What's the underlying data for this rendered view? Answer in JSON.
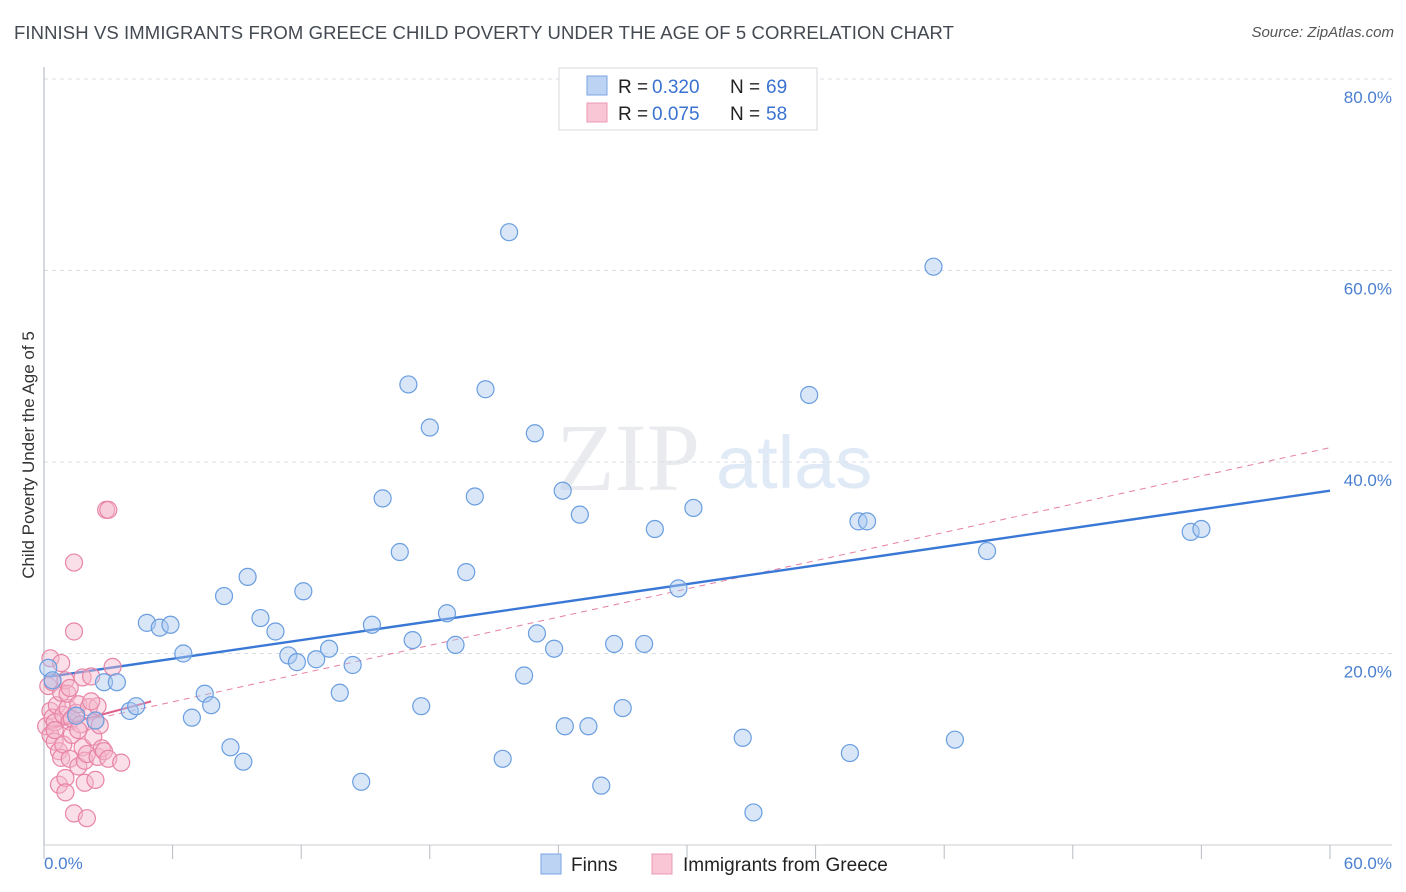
{
  "header": {
    "title": "FINNISH VS IMMIGRANTS FROM GREECE CHILD POVERTY UNDER THE AGE OF 5 CORRELATION CHART",
    "source": "Source: ZipAtlas.com"
  },
  "watermark": {
    "zip": "ZIP",
    "atlas": "atlas"
  },
  "colors": {
    "finns_fill": "#a9c8f0",
    "finns_stroke": "#6a9ee0",
    "finns_line": "#3a78d6",
    "greece_fill": "#f5b8cc",
    "greece_stroke": "#e884a6",
    "greece_line": "#e0608c",
    "grid": "#d9dde3",
    "tick_label": "#4a7fd0"
  },
  "legend": {
    "r_label": "R =",
    "n_label": "N =",
    "finns_r": "0.320",
    "finns_n": "69",
    "greece_r": "0.075",
    "greece_n": "58"
  },
  "bottom_legend": {
    "finns": "Finns",
    "greece": "Immigrants from Greece"
  },
  "chart_data": {
    "type": "scatter",
    "title": "FINNISH VS IMMIGRANTS FROM GREECE CHILD POVERTY UNDER THE AGE OF 5 CORRELATION CHART",
    "xlabel": "",
    "ylabel": "Child Poverty Under the Age of 5",
    "xlim": [
      0,
      60
    ],
    "ylim": [
      0,
      80
    ],
    "x_tick_labels": {
      "min": "0.0%",
      "max": "60.0%"
    },
    "y_tick_labels": [
      "20.0%",
      "40.0%",
      "60.0%",
      "80.0%"
    ],
    "y_tick_values": [
      20,
      40,
      60,
      80
    ],
    "x_minor_ticks": [
      0,
      6,
      12,
      18,
      24,
      30,
      36,
      42,
      48,
      54,
      60
    ],
    "series": [
      {
        "name": "Finns",
        "r": 0.32,
        "n": 69,
        "trend": {
          "x": [
            0,
            60
          ],
          "y": [
            17.5,
            37.0
          ],
          "style": "solid"
        },
        "points": [
          [
            0.2,
            18.5
          ],
          [
            0.4,
            17.2
          ],
          [
            1.5,
            13.5
          ],
          [
            2.4,
            13.0
          ],
          [
            2.8,
            17.0
          ],
          [
            3.4,
            17.0
          ],
          [
            4.0,
            14.0
          ],
          [
            4.3,
            14.5
          ],
          [
            4.8,
            23.2
          ],
          [
            5.4,
            22.7
          ],
          [
            5.9,
            23.0
          ],
          [
            6.5,
            20.0
          ],
          [
            6.9,
            13.3
          ],
          [
            7.5,
            15.8
          ],
          [
            7.8,
            14.6
          ],
          [
            8.4,
            26.0
          ],
          [
            8.7,
            10.2
          ],
          [
            9.3,
            8.7
          ],
          [
            9.5,
            28.0
          ],
          [
            10.1,
            23.7
          ],
          [
            10.8,
            22.3
          ],
          [
            11.4,
            19.8
          ],
          [
            11.8,
            19.1
          ],
          [
            12.1,
            26.5
          ],
          [
            12.7,
            19.4
          ],
          [
            13.3,
            20.5
          ],
          [
            13.8,
            15.9
          ],
          [
            14.4,
            18.8
          ],
          [
            14.8,
            6.6
          ],
          [
            15.3,
            23.0
          ],
          [
            15.8,
            36.2
          ],
          [
            16.6,
            30.6
          ],
          [
            17.0,
            48.1
          ],
          [
            17.2,
            21.4
          ],
          [
            17.6,
            14.5
          ],
          [
            18.0,
            43.6
          ],
          [
            18.8,
            24.2
          ],
          [
            19.2,
            20.9
          ],
          [
            19.7,
            28.5
          ],
          [
            20.1,
            36.4
          ],
          [
            20.6,
            47.6
          ],
          [
            21.4,
            9.0
          ],
          [
            21.7,
            64.0
          ],
          [
            22.4,
            17.7
          ],
          [
            22.9,
            43.0
          ],
          [
            23.0,
            22.1
          ],
          [
            23.8,
            20.5
          ],
          [
            24.2,
            37.0
          ],
          [
            24.3,
            12.4
          ],
          [
            25.0,
            34.5
          ],
          [
            25.4,
            12.4
          ],
          [
            26.0,
            6.2
          ],
          [
            26.6,
            21.0
          ],
          [
            27.0,
            14.3
          ],
          [
            28.0,
            21.0
          ],
          [
            28.5,
            33.0
          ],
          [
            29.6,
            26.8
          ],
          [
            30.3,
            35.2
          ],
          [
            32.6,
            11.2
          ],
          [
            33.1,
            3.4
          ],
          [
            35.7,
            47.0
          ],
          [
            37.6,
            9.6
          ],
          [
            38.0,
            33.8
          ],
          [
            38.4,
            33.8
          ],
          [
            41.5,
            60.4
          ],
          [
            42.5,
            11.0
          ],
          [
            44.0,
            30.7
          ],
          [
            53.5,
            32.7
          ],
          [
            54.0,
            33.0
          ]
        ]
      },
      {
        "name": "Immigrants from Greece",
        "r": 0.075,
        "n": 58,
        "trend": {
          "x": [
            0,
            5
          ],
          "y": [
            12.0,
            15.0
          ],
          "style": "solid"
        },
        "trend_extended": {
          "x": [
            0,
            60
          ],
          "y": [
            12.0,
            41.5
          ],
          "style": "dashed"
        },
        "points": [
          [
            0.1,
            12.4
          ],
          [
            0.2,
            16.6
          ],
          [
            0.3,
            19.5
          ],
          [
            0.3,
            14.0
          ],
          [
            0.3,
            11.5
          ],
          [
            0.4,
            13.3
          ],
          [
            0.4,
            17.0
          ],
          [
            0.5,
            12.8
          ],
          [
            0.5,
            10.8
          ],
          [
            0.6,
            14.6
          ],
          [
            0.7,
            9.8
          ],
          [
            0.7,
            6.3
          ],
          [
            0.8,
            9.1
          ],
          [
            0.8,
            15.9
          ],
          [
            0.9,
            10.5
          ],
          [
            0.9,
            13.6
          ],
          [
            1.0,
            17.2
          ],
          [
            1.0,
            7.0
          ],
          [
            1.0,
            5.5
          ],
          [
            1.1,
            14.3
          ],
          [
            1.1,
            15.8
          ],
          [
            1.2,
            12.9
          ],
          [
            1.2,
            9.0
          ],
          [
            1.3,
            11.5
          ],
          [
            1.3,
            13.2
          ],
          [
            1.4,
            22.3
          ],
          [
            1.4,
            3.3
          ],
          [
            1.4,
            29.5
          ],
          [
            1.5,
            13.8
          ],
          [
            1.6,
            14.7
          ],
          [
            1.6,
            8.2
          ],
          [
            1.7,
            12.6
          ],
          [
            1.8,
            10.2
          ],
          [
            1.8,
            17.5
          ],
          [
            1.9,
            8.8
          ],
          [
            1.9,
            6.5
          ],
          [
            2.0,
            2.8
          ],
          [
            2.0,
            9.5
          ],
          [
            2.1,
            14.4
          ],
          [
            2.2,
            17.6
          ],
          [
            2.3,
            11.3
          ],
          [
            2.4,
            13.0
          ],
          [
            2.4,
            6.8
          ],
          [
            2.5,
            14.5
          ],
          [
            2.5,
            9.2
          ],
          [
            2.6,
            12.5
          ],
          [
            2.7,
            10.1
          ],
          [
            2.8,
            9.8
          ],
          [
            2.9,
            35.0
          ],
          [
            3.0,
            9.0
          ],
          [
            3.0,
            35.0
          ],
          [
            3.2,
            18.6
          ],
          [
            3.6,
            8.6
          ],
          [
            0.8,
            19.0
          ],
          [
            1.2,
            16.4
          ],
          [
            1.6,
            12.0
          ],
          [
            2.2,
            15.0
          ],
          [
            0.5,
            12.0
          ]
        ]
      }
    ]
  }
}
